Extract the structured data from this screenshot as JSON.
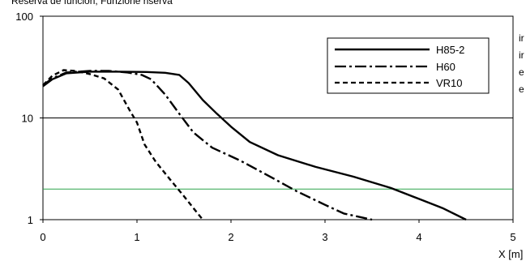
{
  "chart_data": {
    "type": "line",
    "title": "Reserva de función, Funzione riserva",
    "xlabel": "X [m]",
    "ylabel": "",
    "xlim": [
      0,
      5
    ],
    "ylim": [
      1,
      100
    ],
    "yscale": "log",
    "x_ticks": [
      "0",
      "1",
      "2",
      "3",
      "4",
      "5"
    ],
    "y_ticks": [
      "1",
      "10",
      "100"
    ],
    "legend_position": "top-right",
    "side_text": [
      "ir",
      "ir",
      "e",
      "e"
    ],
    "reference_lines": [
      {
        "y": 10,
        "color": "#000000"
      },
      {
        "y": 2,
        "color": "#2ca44a"
      }
    ],
    "series": [
      {
        "name": "H85-2",
        "style": "solid",
        "points": [
          [
            0,
            20.5
          ],
          [
            0.1,
            24
          ],
          [
            0.25,
            27.5
          ],
          [
            0.5,
            28.5
          ],
          [
            0.8,
            28.5
          ],
          [
            1.1,
            28.3
          ],
          [
            1.3,
            27.8
          ],
          [
            1.45,
            26.5
          ],
          [
            1.55,
            22
          ],
          [
            1.7,
            15
          ],
          [
            1.85,
            11
          ],
          [
            2.0,
            8.2
          ],
          [
            2.2,
            5.8
          ],
          [
            2.5,
            4.3
          ],
          [
            2.9,
            3.3
          ],
          [
            3.3,
            2.65
          ],
          [
            3.7,
            2.05
          ],
          [
            4.0,
            1.6
          ],
          [
            4.25,
            1.3
          ],
          [
            4.5,
            1.0
          ]
        ]
      },
      {
        "name": "H60",
        "style": "dashdot",
        "points": [
          [
            0,
            21
          ],
          [
            0.1,
            24.5
          ],
          [
            0.25,
            28
          ],
          [
            0.5,
            29
          ],
          [
            0.7,
            29
          ],
          [
            0.9,
            28
          ],
          [
            1.05,
            26.5
          ],
          [
            1.15,
            24
          ],
          [
            1.3,
            17
          ],
          [
            1.45,
            11
          ],
          [
            1.6,
            7.2
          ],
          [
            1.8,
            5.1
          ],
          [
            2.1,
            3.8
          ],
          [
            2.4,
            2.7
          ],
          [
            2.7,
            1.9
          ],
          [
            3.0,
            1.4
          ],
          [
            3.2,
            1.15
          ],
          [
            3.5,
            1.0
          ]
        ]
      },
      {
        "name": "VR10",
        "style": "dashed",
        "points": [
          [
            0,
            21
          ],
          [
            0.1,
            26
          ],
          [
            0.22,
            29.5
          ],
          [
            0.35,
            29
          ],
          [
            0.5,
            27
          ],
          [
            0.65,
            24.5
          ],
          [
            0.8,
            19
          ],
          [
            0.92,
            12
          ],
          [
            1.0,
            9
          ],
          [
            1.08,
            5.5
          ],
          [
            1.2,
            3.7
          ],
          [
            1.35,
            2.5
          ],
          [
            1.5,
            1.7
          ],
          [
            1.6,
            1.3
          ],
          [
            1.7,
            1.0
          ]
        ]
      }
    ]
  }
}
